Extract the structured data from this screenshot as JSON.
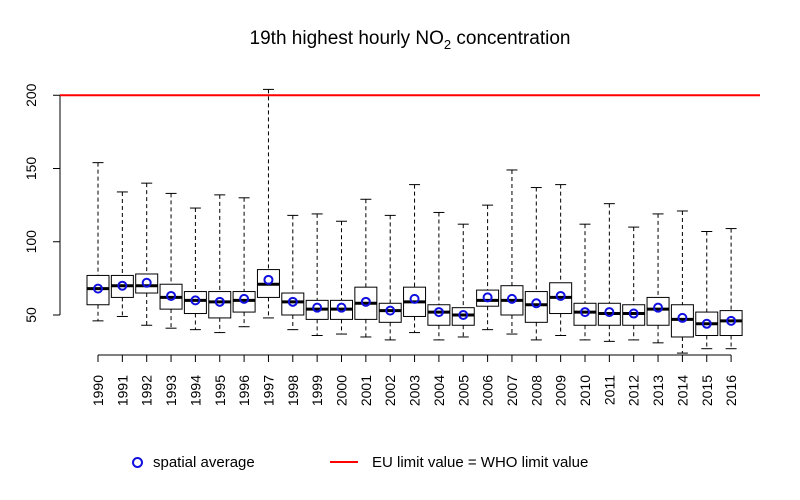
{
  "chart_data": {
    "type": "box",
    "title": {
      "prefix": "19th highest hourly NO",
      "sub": "2",
      "suffix": " concentration"
    },
    "xlabel": "",
    "ylabel": "",
    "ylim": [
      28,
      208
    ],
    "y_ticks": [
      50,
      100,
      150,
      200
    ],
    "categories": [
      "1990",
      "1991",
      "1992",
      "1993",
      "1994",
      "1995",
      "1996",
      "1997",
      "1998",
      "1999",
      "2000",
      "2001",
      "2002",
      "2003",
      "2004",
      "2005",
      "2006",
      "2007",
      "2008",
      "2009",
      "2010",
      "2011",
      "2012",
      "2013",
      "2014",
      "2015",
      "2016"
    ],
    "boxes": [
      {
        "whisker_low": 46,
        "q1": 57,
        "median": 68,
        "q3": 77,
        "whisker_high": 154,
        "mean": 68
      },
      {
        "whisker_low": 49,
        "q1": 62,
        "median": 70,
        "q3": 77,
        "whisker_high": 134,
        "mean": 70
      },
      {
        "whisker_low": 43,
        "q1": 65,
        "median": 70,
        "q3": 78,
        "whisker_high": 140,
        "mean": 72
      },
      {
        "whisker_low": 41,
        "q1": 54,
        "median": 62,
        "q3": 71,
        "whisker_high": 133,
        "mean": 63
      },
      {
        "whisker_low": 40,
        "q1": 51,
        "median": 60,
        "q3": 66,
        "whisker_high": 123,
        "mean": 60
      },
      {
        "whisker_low": 38,
        "q1": 48,
        "median": 59,
        "q3": 66,
        "whisker_high": 132,
        "mean": 59
      },
      {
        "whisker_low": 42,
        "q1": 52,
        "median": 60,
        "q3": 66,
        "whisker_high": 130,
        "mean": 61
      },
      {
        "whisker_low": 48,
        "q1": 62,
        "median": 71,
        "q3": 81,
        "whisker_high": 204,
        "mean": 74
      },
      {
        "whisker_low": 40,
        "q1": 50,
        "median": 59,
        "q3": 65,
        "whisker_high": 118,
        "mean": 59
      },
      {
        "whisker_low": 36,
        "q1": 47,
        "median": 54,
        "q3": 60,
        "whisker_high": 119,
        "mean": 55
      },
      {
        "whisker_low": 37,
        "q1": 47,
        "median": 54,
        "q3": 60,
        "whisker_high": 114,
        "mean": 55
      },
      {
        "whisker_low": 35,
        "q1": 47,
        "median": 58,
        "q3": 69,
        "whisker_high": 129,
        "mean": 59
      },
      {
        "whisker_low": 33,
        "q1": 45,
        "median": 53,
        "q3": 58,
        "whisker_high": 118,
        "mean": 53
      },
      {
        "whisker_low": 38,
        "q1": 49,
        "median": 59,
        "q3": 69,
        "whisker_high": 139,
        "mean": 61
      },
      {
        "whisker_low": 33,
        "q1": 43,
        "median": 52,
        "q3": 57,
        "whisker_high": 120,
        "mean": 52
      },
      {
        "whisker_low": 35,
        "q1": 43,
        "median": 50,
        "q3": 55,
        "whisker_high": 112,
        "mean": 50
      },
      {
        "whisker_low": 40,
        "q1": 56,
        "median": 60,
        "q3": 67,
        "whisker_high": 125,
        "mean": 62
      },
      {
        "whisker_low": 37,
        "q1": 50,
        "median": 60,
        "q3": 70,
        "whisker_high": 149,
        "mean": 61
      },
      {
        "whisker_low": 33,
        "q1": 45,
        "median": 57,
        "q3": 66,
        "whisker_high": 137,
        "mean": 58
      },
      {
        "whisker_low": 36,
        "q1": 51,
        "median": 62,
        "q3": 72,
        "whisker_high": 139,
        "mean": 63
      },
      {
        "whisker_low": 33,
        "q1": 43,
        "median": 52,
        "q3": 58,
        "whisker_high": 112,
        "mean": 52
      },
      {
        "whisker_low": 32,
        "q1": 43,
        "median": 51,
        "q3": 58,
        "whisker_high": 126,
        "mean": 52
      },
      {
        "whisker_low": 33,
        "q1": 43,
        "median": 51,
        "q3": 57,
        "whisker_high": 110,
        "mean": 51
      },
      {
        "whisker_low": 31,
        "q1": 43,
        "median": 54,
        "q3": 62,
        "whisker_high": 119,
        "mean": 55
      },
      {
        "whisker_low": 24,
        "q1": 35,
        "median": 47,
        "q3": 57,
        "whisker_high": 121,
        "mean": 48
      },
      {
        "whisker_low": 27,
        "q1": 36,
        "median": 44,
        "q3": 52,
        "whisker_high": 107,
        "mean": 44
      },
      {
        "whisker_low": 27,
        "q1": 36,
        "median": 46,
        "q3": 53,
        "whisker_high": 109,
        "mean": 46
      }
    ],
    "reference_line": {
      "value": 200,
      "color": "#ff0000"
    },
    "mean_marker_color": "#1010e0",
    "legend": [
      {
        "label": "spatial average",
        "marker": "circle",
        "color": "#1010e0"
      },
      {
        "label": "EU limit value = WHO limit value",
        "marker": "line",
        "color": "#ff0000"
      }
    ],
    "legend_placement": "bottom",
    "grid": false
  }
}
